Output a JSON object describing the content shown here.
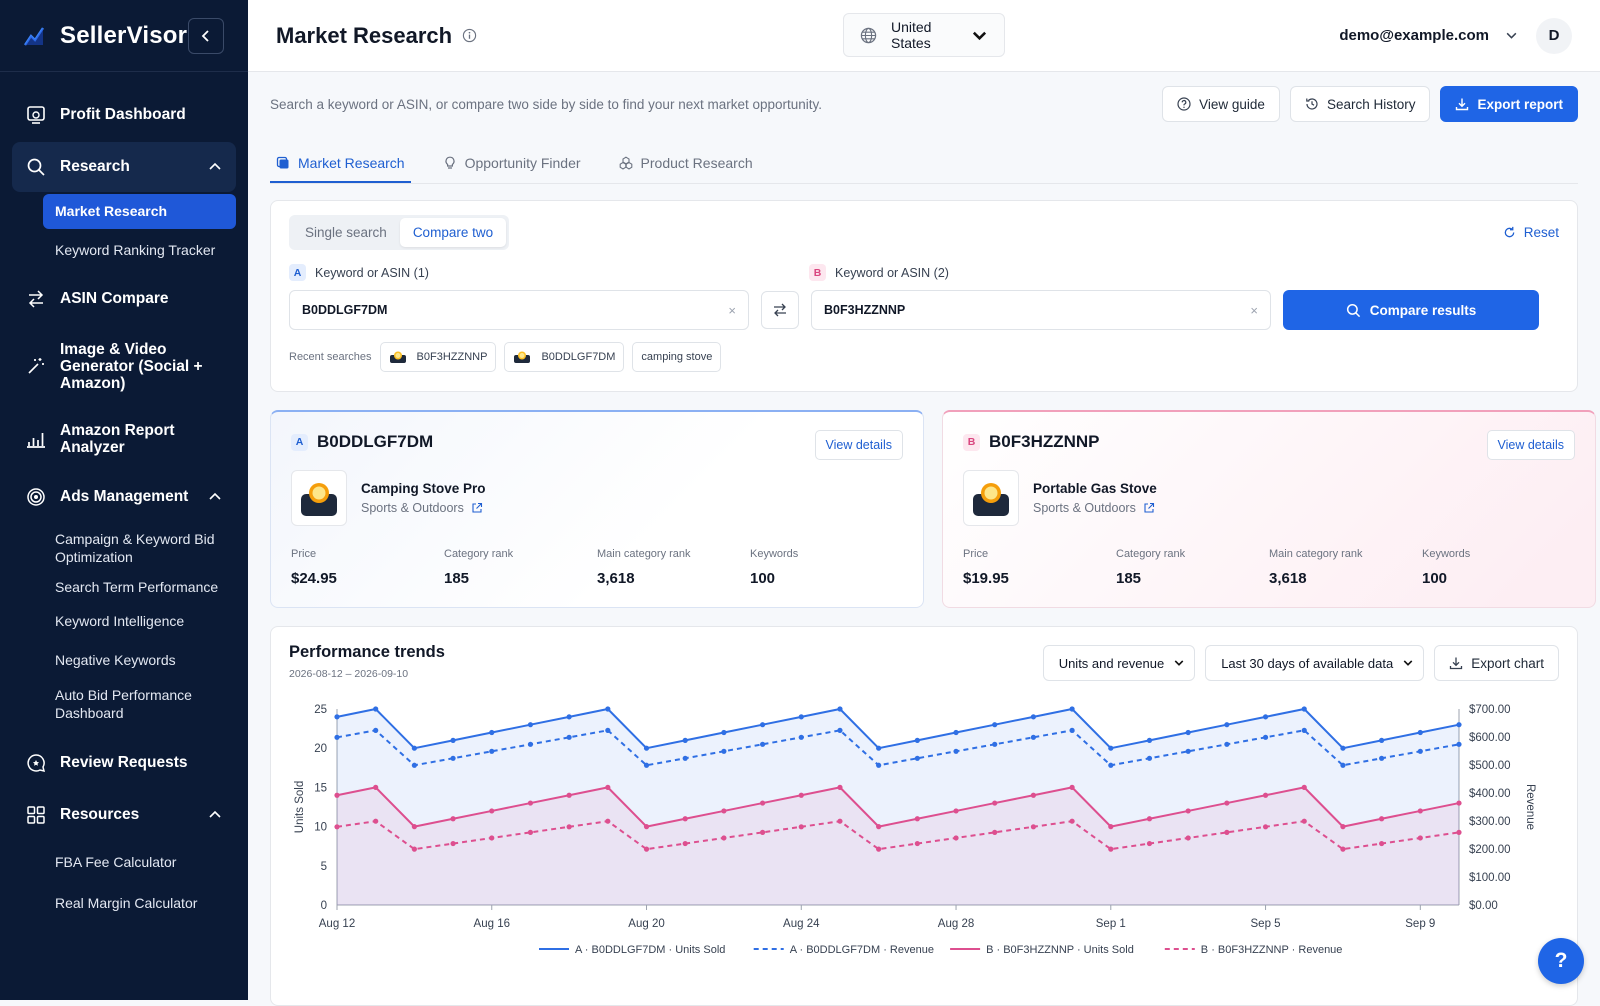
{
  "brand": {
    "name": "SellerVisor"
  },
  "sidebar": {
    "items": [
      {
        "label": "Profit Dashboard",
        "icon": "dashboard-icon"
      },
      {
        "label": "Research",
        "icon": "search-icon"
      },
      {
        "label": "ASIN Compare",
        "icon": "swap-icon"
      },
      {
        "label": "Image & Video Generator (Social + Amazon)",
        "icon": "magic-wand-icon"
      },
      {
        "label": "Amazon Report Analyzer",
        "icon": "bar-chart-icon"
      },
      {
        "label": "Ads Management",
        "icon": "target-icon"
      },
      {
        "label": "Review Requests",
        "icon": "review-icon"
      },
      {
        "label": "Resources",
        "icon": "grid-icon"
      }
    ],
    "research_sub": [
      "Market Research",
      "Keyword Ranking Tracker"
    ],
    "ads_sub": [
      "Campaign & Keyword Bid Optimization",
      "Search Term Performance",
      "Keyword Intelligence",
      "Negative Keywords",
      "Auto Bid Performance Dashboard"
    ],
    "resources_sub": [
      "FBA Fee Calculator",
      "Real Margin Calculator"
    ]
  },
  "header": {
    "title": "Market Research",
    "country": "United States",
    "user_email": "demo@example.com",
    "avatar_letter": "D"
  },
  "main": {
    "subtitle": "Search a keyword or ASIN, or compare two side by side to find your next market opportunity.",
    "buttons": {
      "guide": "View guide",
      "history": "Search History",
      "export": "Export report"
    },
    "tabs": [
      "Market Research",
      "Opportunity Finder",
      "Product Research"
    ]
  },
  "search": {
    "mode_single": "Single search",
    "mode_compare": "Compare two",
    "reset": "Reset",
    "label_a": "Keyword or ASIN (1)",
    "label_b": "Keyword or ASIN (2)",
    "tag_a": "A",
    "tag_b": "B",
    "value_a": "B0DDLGF7DM",
    "value_b": "B0F3HZZNNP",
    "clear": "×",
    "compare_button": "Compare results",
    "recent_label": "Recent searches",
    "recent": [
      "B0F3HZZNNP",
      "B0DDLGF7DM",
      "camping stove"
    ]
  },
  "cards": [
    {
      "tag": "A",
      "asin": "B0DDLGF7DM",
      "view": "View details",
      "name": "Camping Stove Pro",
      "category": "Sports & Outdoors",
      "price_label": "Price",
      "price": "$24.95",
      "rank_label": "Category rank",
      "rank": "185",
      "main_rank_label": "Main category rank",
      "main_rank": "3,618",
      "kw_label": "Keywords",
      "keywords": "100"
    },
    {
      "tag": "B",
      "asin": "B0F3HZZNNP",
      "view": "View details",
      "name": "Portable Gas Stove",
      "category": "Sports & Outdoors",
      "price_label": "Price",
      "price": "$19.95",
      "rank_label": "Category rank",
      "rank": "185",
      "main_rank_label": "Main category rank",
      "main_rank": "3,618",
      "kw_label": "Keywords",
      "keywords": "100"
    }
  ],
  "performance": {
    "title": "Performance trends",
    "date_range": "2026-08-12 – 2026-09-10",
    "metric": "Units and revenue",
    "period": "Last 30 days of available data",
    "export": "Export chart"
  },
  "colors": {
    "series_a": "#2f6fe4",
    "series_b": "#dd4f8f",
    "accent": "#1f65e6"
  },
  "help": "?",
  "chart_data": {
    "type": "line",
    "x": [
      "Aug 12",
      "Aug 13",
      "Aug 14",
      "Aug 15",
      "Aug 16",
      "Aug 17",
      "Aug 18",
      "Aug 19",
      "Aug 20",
      "Aug 21",
      "Aug 22",
      "Aug 23",
      "Aug 24",
      "Aug 25",
      "Aug 26",
      "Aug 27",
      "Aug 28",
      "Aug 29",
      "Aug 30",
      "Aug 31",
      "Sep 1",
      "Sep 2",
      "Sep 3",
      "Sep 4",
      "Sep 5",
      "Sep 6",
      "Sep 7",
      "Sep 8",
      "Sep 9",
      "Sep 10"
    ],
    "x_ticks": [
      "Aug 12",
      "Aug 16",
      "Aug 20",
      "Aug 24",
      "Aug 28",
      "Sep 1",
      "Sep 5",
      "Sep 9"
    ],
    "ylabel": "Units Sold",
    "y2label": "Revenue",
    "ylim": [
      0,
      25
    ],
    "y_ticks": [
      0,
      5,
      10,
      15,
      20,
      25
    ],
    "y2lim": [
      0,
      700
    ],
    "y2_ticks": [
      "$0.00",
      "$100.00",
      "$200.00",
      "$300.00",
      "$400.00",
      "$500.00",
      "$600.00",
      "$700.00"
    ],
    "series": [
      {
        "name": "A · B0DDLGF7DM · Units Sold",
        "axis": "left",
        "style": "solid",
        "color": "#2f6fe4",
        "values": [
          24,
          25,
          20,
          21,
          22,
          23,
          24,
          25,
          20,
          21,
          22,
          23,
          24,
          25,
          20,
          21,
          22,
          23,
          24,
          25,
          20,
          21,
          22,
          23,
          24,
          25,
          20,
          21,
          22,
          23
        ]
      },
      {
        "name": "A · B0DDLGF7DM · Revenue",
        "axis": "right",
        "style": "dashed",
        "color": "#2f6fe4",
        "values": [
          598.8,
          623.75,
          499,
          523.95,
          548.9,
          573.85,
          598.8,
          623.75,
          499,
          523.95,
          548.9,
          573.85,
          598.8,
          623.75,
          499,
          523.95,
          548.9,
          573.85,
          598.8,
          623.75,
          499,
          523.95,
          548.9,
          573.85,
          598.8,
          623.75,
          499,
          523.95,
          548.9,
          573.85
        ]
      },
      {
        "name": "B · B0F3HZZNNP · Units Sold",
        "axis": "left",
        "style": "solid",
        "color": "#dd4f8f",
        "values": [
          14,
          15,
          10,
          11,
          12,
          13,
          14,
          15,
          10,
          11,
          12,
          13,
          14,
          15,
          10,
          11,
          12,
          13,
          14,
          15,
          10,
          11,
          12,
          13,
          14,
          15,
          10,
          11,
          12,
          13
        ]
      },
      {
        "name": "B · B0F3HZZNNP · Revenue",
        "axis": "right",
        "style": "dashed",
        "color": "#dd4f8f",
        "values": [
          279.3,
          299.25,
          199.5,
          219.45,
          239.4,
          259.35,
          279.3,
          299.25,
          199.5,
          219.45,
          239.4,
          259.35,
          279.3,
          299.25,
          199.5,
          219.45,
          239.4,
          259.35,
          279.3,
          299.25,
          199.5,
          219.45,
          239.4,
          259.35,
          279.3,
          299.25,
          199.5,
          219.45,
          239.4,
          259.35
        ]
      }
    ],
    "legend": "bottom",
    "grid": false
  }
}
